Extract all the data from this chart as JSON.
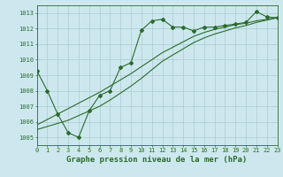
{
  "title": "Graphe pression niveau de la mer (hPa)",
  "bg_color": "#cce8ee",
  "grid_color": "#aacccc",
  "line_color": "#2d6a2d",
  "xlim": [
    0,
    23
  ],
  "ylim": [
    1004.5,
    1013.5
  ],
  "yticks": [
    1005,
    1006,
    1007,
    1008,
    1009,
    1010,
    1011,
    1012,
    1013
  ],
  "xticks": [
    0,
    1,
    2,
    3,
    4,
    5,
    6,
    7,
    8,
    9,
    10,
    11,
    12,
    13,
    14,
    15,
    16,
    17,
    18,
    19,
    20,
    21,
    22,
    23
  ],
  "series1_x": [
    0,
    1,
    2,
    3,
    4,
    5,
    6,
    7,
    8,
    9,
    10,
    11,
    12,
    13,
    14,
    15,
    16,
    17,
    18,
    19,
    20,
    21,
    22,
    23
  ],
  "series1_y": [
    1009.3,
    1008.0,
    1006.5,
    1005.3,
    1005.0,
    1006.7,
    1007.7,
    1008.0,
    1009.5,
    1009.8,
    1011.9,
    1012.5,
    1012.6,
    1012.1,
    1012.1,
    1011.85,
    1012.1,
    1012.1,
    1012.2,
    1012.3,
    1012.4,
    1013.1,
    1012.75,
    1012.7
  ],
  "series2_x": [
    0,
    1,
    2,
    3,
    4,
    5,
    6,
    7,
    8,
    9,
    10,
    11,
    12,
    13,
    14,
    15,
    16,
    17,
    18,
    19,
    20,
    21,
    22,
    23
  ],
  "series2_y": [
    1005.8,
    1006.15,
    1006.5,
    1006.85,
    1007.2,
    1007.55,
    1007.9,
    1008.3,
    1008.7,
    1009.1,
    1009.55,
    1010.0,
    1010.45,
    1010.8,
    1011.15,
    1011.5,
    1011.75,
    1011.95,
    1012.1,
    1012.25,
    1012.35,
    1012.5,
    1012.6,
    1012.7
  ],
  "series3_x": [
    0,
    1,
    2,
    3,
    4,
    5,
    6,
    7,
    8,
    9,
    10,
    11,
    12,
    13,
    14,
    15,
    16,
    17,
    18,
    19,
    20,
    21,
    22,
    23
  ],
  "series3_y": [
    1005.5,
    1005.7,
    1005.9,
    1006.1,
    1006.4,
    1006.7,
    1007.0,
    1007.4,
    1007.85,
    1008.3,
    1008.8,
    1009.35,
    1009.9,
    1010.3,
    1010.7,
    1011.1,
    1011.4,
    1011.65,
    1011.85,
    1012.05,
    1012.2,
    1012.4,
    1012.55,
    1012.7
  ],
  "title_fontsize": 6.5,
  "tick_fontsize": 5.0
}
